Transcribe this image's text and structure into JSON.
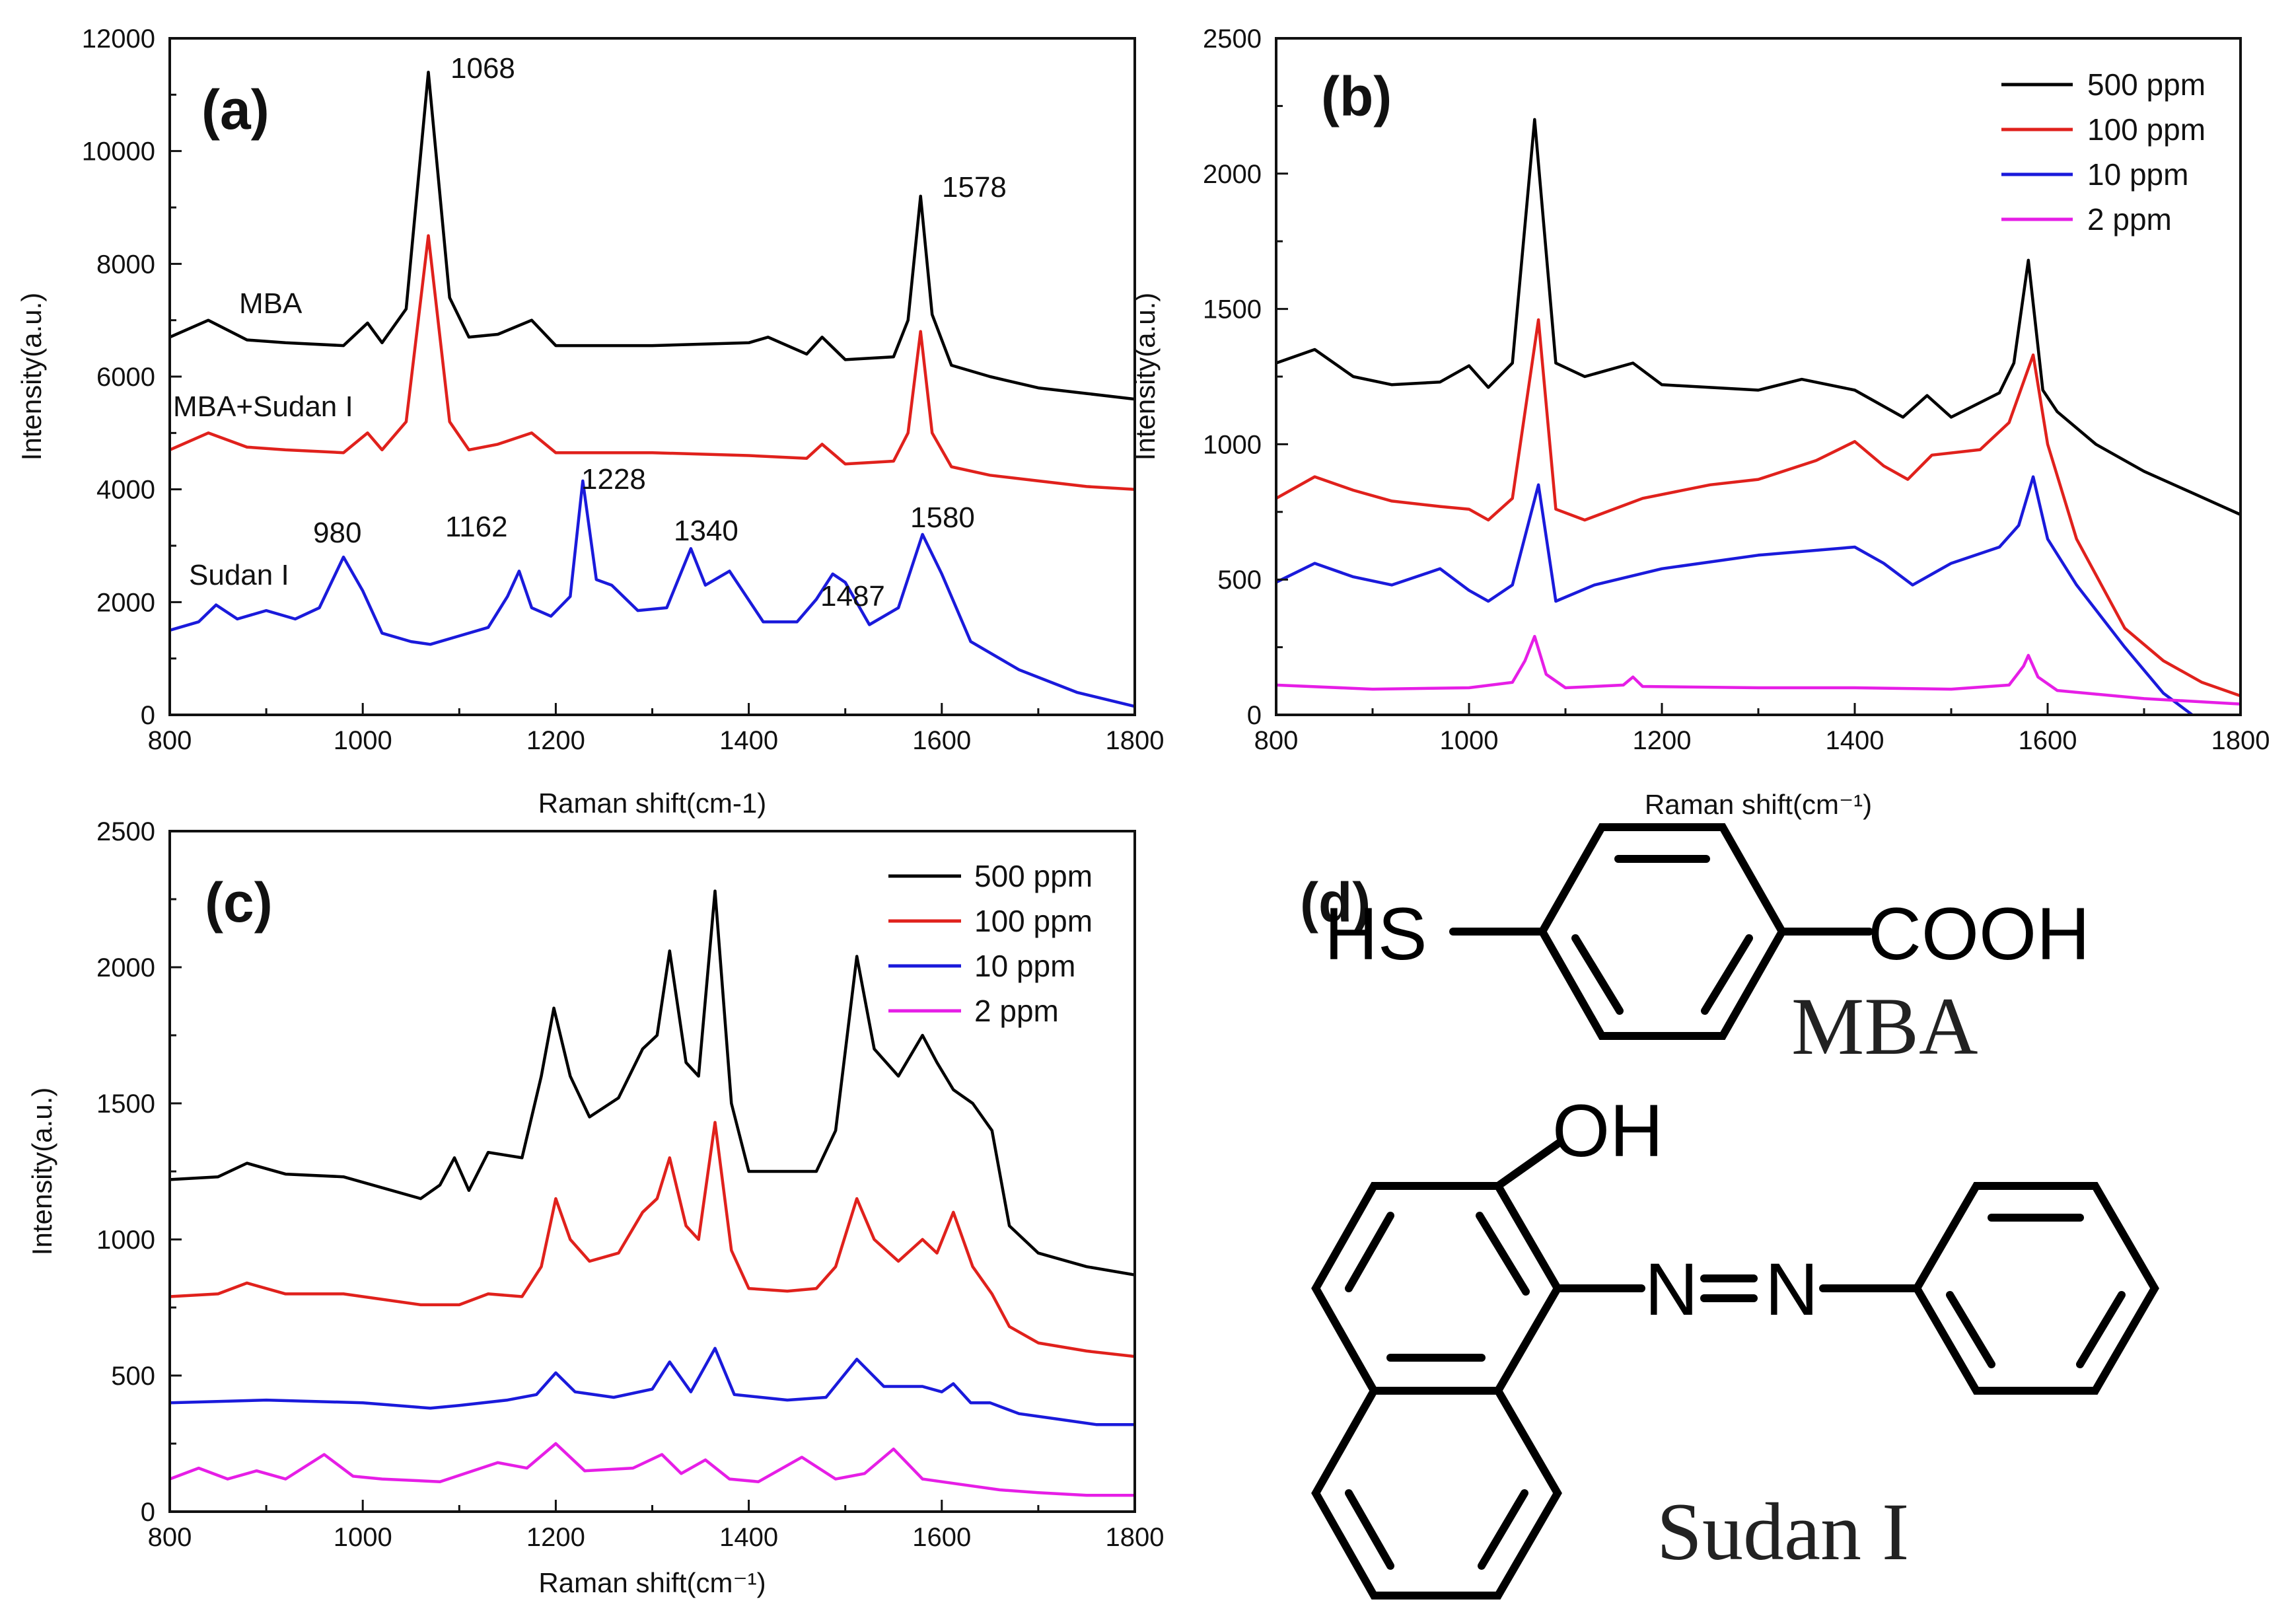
{
  "chart_data": [
    {
      "panel": "(a)",
      "type": "line",
      "xlabel": "Raman shift(cm-1)",
      "ylabel": "Intensity(a.u.)",
      "xlim": [
        800,
        1800
      ],
      "ylim": [
        0,
        12000
      ],
      "xticks": [
        800,
        1000,
        1200,
        1400,
        1600,
        1800
      ],
      "yticks": [
        0,
        2000,
        4000,
        6000,
        8000,
        10000,
        12000
      ],
      "series": [
        {
          "name": "MBA",
          "color": "#000000",
          "x": [
            800,
            840,
            880,
            920,
            980,
            1005,
            1020,
            1045,
            1068,
            1090,
            1110,
            1140,
            1175,
            1200,
            1300,
            1400,
            1420,
            1460,
            1476,
            1500,
            1550,
            1565,
            1578,
            1590,
            1610,
            1650,
            1700,
            1750,
            1800
          ],
          "y": [
            6700,
            7000,
            6650,
            6600,
            6550,
            6950,
            6600,
            7200,
            11400,
            7400,
            6700,
            6750,
            7000,
            6550,
            6550,
            6600,
            6700,
            6400,
            6700,
            6300,
            6350,
            7000,
            9200,
            7100,
            6200,
            6000,
            5800,
            5700,
            5600
          ]
        },
        {
          "name": "MBA+Sudan I",
          "color": "#e0211c",
          "x": [
            800,
            840,
            880,
            920,
            980,
            1005,
            1020,
            1045,
            1068,
            1090,
            1110,
            1140,
            1175,
            1200,
            1300,
            1400,
            1460,
            1476,
            1500,
            1550,
            1565,
            1578,
            1590,
            1610,
            1650,
            1700,
            1750,
            1800
          ],
          "y": [
            4700,
            5000,
            4750,
            4700,
            4650,
            5000,
            4700,
            5200,
            8500,
            5200,
            4700,
            4800,
            5000,
            4650,
            4650,
            4600,
            4550,
            4800,
            4450,
            4500,
            5000,
            6800,
            5000,
            4400,
            4250,
            4150,
            4050,
            4000
          ]
        },
        {
          "name": "Sudan I",
          "color": "#1a1adb",
          "x": [
            800,
            830,
            848,
            870,
            900,
            930,
            955,
            980,
            1000,
            1020,
            1050,
            1070,
            1100,
            1130,
            1150,
            1162,
            1175,
            1195,
            1215,
            1228,
            1242,
            1258,
            1285,
            1315,
            1340,
            1355,
            1380,
            1415,
            1450,
            1470,
            1487,
            1500,
            1525,
            1555,
            1580,
            1600,
            1630,
            1680,
            1740,
            1800
          ],
          "y": [
            1500,
            1650,
            1950,
            1700,
            1850,
            1700,
            1900,
            2800,
            2200,
            1450,
            1300,
            1250,
            1400,
            1550,
            2100,
            2550,
            1900,
            1750,
            2100,
            4150,
            2400,
            2300,
            1850,
            1900,
            2950,
            2300,
            2550,
            1650,
            1650,
            2050,
            2500,
            2350,
            1600,
            1900,
            3200,
            2500,
            1300,
            800,
            400,
            150
          ]
        }
      ],
      "annotations": [
        "1068",
        "1578",
        "MBA",
        "MBA+Sudan I",
        "Sudan I",
        "980",
        "1162",
        "1228",
        "1340",
        "1487",
        "1580"
      ]
    },
    {
      "panel": "(b)",
      "type": "line",
      "xlabel": "Raman shift(cm⁻¹)",
      "ylabel": "Intensity(a.u.)",
      "xlim": [
        800,
        1800
      ],
      "ylim": [
        0,
        2500
      ],
      "xticks": [
        800,
        1000,
        1200,
        1400,
        1600,
        1800
      ],
      "yticks": [
        0,
        500,
        1000,
        1500,
        2000,
        2500
      ],
      "legend": "top-right",
      "series": [
        {
          "name": "500 ppm",
          "color": "#000000",
          "x": [
            800,
            840,
            880,
            920,
            970,
            1000,
            1020,
            1045,
            1068,
            1090,
            1120,
            1170,
            1200,
            1300,
            1345,
            1400,
            1450,
            1475,
            1500,
            1550,
            1565,
            1580,
            1595,
            1610,
            1650,
            1700,
            1750,
            1800
          ],
          "y": [
            1300,
            1350,
            1250,
            1220,
            1230,
            1290,
            1210,
            1300,
            2200,
            1300,
            1250,
            1300,
            1220,
            1200,
            1240,
            1200,
            1100,
            1180,
            1100,
            1190,
            1300,
            1680,
            1200,
            1120,
            1000,
            900,
            820,
            740
          ]
        },
        {
          "name": "100 ppm",
          "color": "#e0211c",
          "x": [
            800,
            840,
            880,
            920,
            970,
            1000,
            1020,
            1045,
            1072,
            1090,
            1120,
            1180,
            1250,
            1300,
            1360,
            1400,
            1430,
            1455,
            1480,
            1530,
            1560,
            1585,
            1600,
            1630,
            1680,
            1720,
            1760,
            1800
          ],
          "y": [
            800,
            880,
            830,
            790,
            770,
            760,
            720,
            800,
            1460,
            760,
            720,
            800,
            850,
            870,
            940,
            1010,
            920,
            870,
            960,
            980,
            1080,
            1330,
            1000,
            650,
            320,
            200,
            120,
            70
          ]
        },
        {
          "name": "10 ppm",
          "color": "#1a1adb",
          "x": [
            800,
            840,
            880,
            920,
            970,
            1000,
            1020,
            1045,
            1072,
            1090,
            1130,
            1200,
            1300,
            1400,
            1430,
            1460,
            1500,
            1550,
            1570,
            1585,
            1600,
            1630,
            1680,
            1720,
            1750
          ],
          "y": [
            490,
            560,
            510,
            480,
            540,
            460,
            420,
            480,
            850,
            420,
            480,
            540,
            590,
            620,
            560,
            480,
            560,
            620,
            700,
            880,
            650,
            480,
            250,
            80,
            0
          ]
        },
        {
          "name": "2 ppm",
          "color": "#e61ee6",
          "x": [
            800,
            900,
            1000,
            1045,
            1058,
            1068,
            1080,
            1100,
            1160,
            1170,
            1180,
            1300,
            1400,
            1500,
            1560,
            1575,
            1580,
            1590,
            1610,
            1700,
            1800
          ],
          "y": [
            110,
            95,
            100,
            120,
            200,
            290,
            150,
            100,
            110,
            140,
            105,
            100,
            100,
            95,
            110,
            180,
            220,
            140,
            90,
            60,
            40
          ]
        }
      ]
    },
    {
      "panel": "(c)",
      "type": "line",
      "xlabel": "Raman shift(cm⁻¹)",
      "ylabel": "Intensity(a.u.)",
      "xlim": [
        800,
        1800
      ],
      "ylim": [
        0,
        2500
      ],
      "xticks": [
        800,
        1000,
        1200,
        1400,
        1600,
        1800
      ],
      "yticks": [
        0,
        500,
        1000,
        1500,
        2000,
        2500
      ],
      "legend": "top-right",
      "series": [
        {
          "name": "500 ppm",
          "color": "#000000",
          "x": [
            800,
            850,
            880,
            920,
            980,
            1060,
            1080,
            1095,
            1110,
            1130,
            1165,
            1185,
            1198,
            1215,
            1235,
            1265,
            1290,
            1305,
            1318,
            1335,
            1348,
            1365,
            1382,
            1400,
            1440,
            1470,
            1490,
            1512,
            1530,
            1555,
            1580,
            1595,
            1612,
            1632,
            1652,
            1670,
            1700,
            1750,
            1800
          ],
          "y": [
            1220,
            1230,
            1280,
            1240,
            1230,
            1150,
            1200,
            1300,
            1180,
            1320,
            1300,
            1600,
            1850,
            1600,
            1450,
            1520,
            1700,
            1750,
            2060,
            1650,
            1600,
            2280,
            1500,
            1250,
            1250,
            1250,
            1400,
            2040,
            1700,
            1600,
            1750,
            1650,
            1550,
            1500,
            1400,
            1050,
            950,
            900,
            870
          ]
        },
        {
          "name": "100 ppm",
          "color": "#e0211c",
          "x": [
            800,
            850,
            880,
            920,
            980,
            1060,
            1080,
            1100,
            1130,
            1165,
            1185,
            1200,
            1215,
            1235,
            1265,
            1290,
            1305,
            1318,
            1335,
            1348,
            1365,
            1382,
            1400,
            1440,
            1470,
            1490,
            1512,
            1530,
            1555,
            1580,
            1595,
            1612,
            1632,
            1652,
            1670,
            1700,
            1750,
            1800
          ],
          "y": [
            790,
            800,
            840,
            800,
            800,
            760,
            760,
            760,
            800,
            790,
            900,
            1150,
            1000,
            920,
            950,
            1100,
            1150,
            1300,
            1050,
            1000,
            1430,
            960,
            820,
            810,
            820,
            900,
            1150,
            1000,
            920,
            1000,
            950,
            1100,
            900,
            800,
            680,
            620,
            590,
            570
          ]
        },
        {
          "name": "10 ppm",
          "color": "#1a1adb",
          "x": [
            800,
            900,
            1000,
            1070,
            1100,
            1150,
            1180,
            1200,
            1220,
            1260,
            1300,
            1318,
            1340,
            1365,
            1385,
            1440,
            1480,
            1512,
            1540,
            1580,
            1600,
            1612,
            1630,
            1650,
            1680,
            1720,
            1760,
            1800
          ],
          "y": [
            400,
            410,
            400,
            380,
            390,
            410,
            430,
            510,
            440,
            420,
            450,
            550,
            440,
            600,
            430,
            410,
            420,
            560,
            460,
            460,
            440,
            470,
            400,
            400,
            360,
            340,
            320,
            320
          ]
        },
        {
          "name": "2 ppm",
          "color": "#e61ee6",
          "x": [
            800,
            830,
            860,
            890,
            920,
            960,
            990,
            1020,
            1080,
            1140,
            1170,
            1200,
            1230,
            1280,
            1310,
            1330,
            1355,
            1380,
            1410,
            1455,
            1490,
            1520,
            1550,
            1580,
            1620,
            1660,
            1700,
            1750,
            1800
          ],
          "y": [
            120,
            160,
            120,
            150,
            120,
            210,
            130,
            120,
            110,
            180,
            160,
            250,
            150,
            160,
            210,
            140,
            190,
            120,
            110,
            200,
            120,
            140,
            230,
            120,
            100,
            80,
            70,
            60,
            60
          ]
        }
      ]
    }
  ],
  "panel_d": {
    "label": "(d)",
    "mba": {
      "left_group": "HS",
      "right_group": "COOH",
      "name": "MBA"
    },
    "sudan": {
      "hydroxyl": "OH",
      "azo_n1": "N",
      "azo_n2": "N",
      "name": "Sudan I"
    }
  }
}
